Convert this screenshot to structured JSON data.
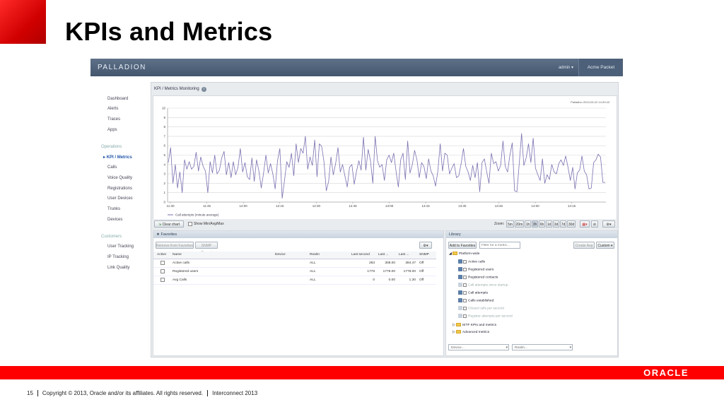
{
  "slide": {
    "title": "KPIs and Metrics",
    "page_number": "15",
    "copyright": "Copyright © 2013, Oracle and/or its affiliates. All rights reserved.",
    "event": "Interconnect 2013",
    "logo": "ORACLE",
    "accent_color": "#ff0000"
  },
  "app": {
    "brand": "PALLADION",
    "user_menu": "admin ▾",
    "top_right_tab": "Acme Packet",
    "topbar_color": "#4d6079"
  },
  "sidebar": {
    "items": [
      "Dashboard",
      "Alerts",
      "Traces",
      "Apps"
    ],
    "operations_header": "Operations",
    "operations": [
      "KPI / Metrics",
      "Calls",
      "Voice Quality",
      "Registrations",
      "User Devices",
      "Trunks",
      "Devices"
    ],
    "customers_header": "Customers",
    "customers": [
      "User Tracking",
      "IP Tracking",
      "Link Quality"
    ]
  },
  "panel": {
    "title": "KPI / Metrics Monitoring",
    "info_icon": "i",
    "timestamp": "Palladion 2013-03-22 14:20:43"
  },
  "chart_data": {
    "type": "line",
    "title": "",
    "xlabel": "",
    "ylabel": "",
    "ylim": [
      0,
      10
    ],
    "yticks": [
      "0",
      "1",
      "2",
      "3",
      "4",
      "5",
      "6",
      "7",
      "8",
      "9",
      "10"
    ],
    "xticks": [
      "11:30",
      "11:45",
      "12:00",
      "12:15",
      "12:30",
      "12:45",
      "13:00",
      "13:15",
      "13:30",
      "13:45",
      "14:00",
      "14:15"
    ],
    "grid": true,
    "legend_position": "bottom-left",
    "series": [
      {
        "name": "Call attempts (minute average)",
        "color": "#7b6fb0",
        "values": [
          4.2,
          5.8,
          2.0,
          4.0,
          1.5,
          3.2,
          1.0,
          4.5,
          3.5,
          4.3,
          3.5,
          3.8,
          5.3,
          3.3,
          4.8,
          3.8,
          3.3,
          1.0,
          4.3,
          3.1,
          5.0,
          3.0,
          3.4,
          4.7,
          5.4,
          2.9,
          4.2,
          2.6,
          4.3,
          2.9,
          3.7,
          5.7,
          3.2,
          4.2,
          2.7,
          2.4,
          4.7,
          2.2,
          4.5,
          3.3,
          1.5,
          3.1,
          5.0,
          3.1,
          4.1,
          3.0,
          1.4,
          4.4,
          5.7,
          0.4,
          2.3,
          4.3,
          3.7,
          5.2,
          2.8,
          6.2,
          4.2,
          5.7,
          5.2,
          7.0,
          3.5,
          4.8,
          3.9,
          6.6,
          2.7,
          6.2,
          5.9,
          4.3,
          1.2,
          2.2,
          4.8,
          2.9,
          4.1,
          5.8,
          3.2,
          4.0,
          2.8,
          1.6,
          3.7,
          4.0,
          1.9,
          3.3,
          4.4,
          3.4,
          6.9,
          3.4,
          5.6,
          4.4,
          2.0,
          7.0,
          4.4,
          3.7,
          4.0,
          2.3,
          4.5,
          5.0,
          4.2,
          5.2,
          3.3,
          1.6,
          4.5,
          5.2,
          2.4,
          6.5,
          3.1,
          4.0,
          5.5,
          4.5,
          2.6,
          4.2,
          3.8,
          2.5,
          4.6,
          3.3,
          2.8,
          1.7,
          3.3,
          6.2,
          3.3,
          5.2,
          5.0,
          3.0,
          3.6,
          4.1,
          2.6,
          2.8,
          4.1,
          5.7,
          3.8,
          3.2,
          2.3,
          3.9,
          2.6,
          4.2,
          1.1,
          4.2,
          4.6,
          3.2,
          2.0,
          5.2,
          4.1,
          4.3,
          3.3,
          3.9,
          6.5,
          3.8,
          3.2,
          5.0,
          6.3,
          1.2,
          1.1,
          4.1,
          7.3,
          3.9,
          4.7,
          6.2,
          4.2,
          6.8,
          3.6,
          2.9,
          2.3,
          4.6,
          2.0,
          2.9,
          2.4,
          4.0,
          3.2,
          3.0,
          4.1,
          4.5,
          3.9,
          4.9,
          3.7,
          2.3,
          3.7,
          1.4,
          3.1,
          3.4,
          4.9,
          3.3,
          2.9,
          1.4,
          1.5,
          4.2,
          4.5,
          5.1,
          4.8,
          2.1,
          2.1
        ]
      }
    ]
  },
  "toolbar": {
    "clear_chart": "Clear chart",
    "show_minavgmax": "Show Min/Avg/Max",
    "zoom_label": "Zoom:",
    "zoom_options": [
      "5m",
      "20m",
      "1h",
      "3h",
      "6h",
      "1d",
      "3d",
      "7d",
      "30d"
    ]
  },
  "favorites": {
    "title": "★ Favorites",
    "remove_button": "Remove from Favorites",
    "snmp_export": "SNMP Export",
    "columns": [
      "Active",
      "Name",
      "Device",
      "Realm",
      "Last second",
      "Last ...",
      "Last ...",
      "SNMP"
    ],
    "rows": [
      {
        "name": "Active calls",
        "device": "",
        "realm": "ALL",
        "last_second": "283",
        "last_a": "308.00",
        "last_b": "384.47",
        "snmp": "Off"
      },
      {
        "name": "Registered users",
        "device": "",
        "realm": "ALL",
        "last_second": "1778",
        "last_a": "1778.00",
        "last_b": "1778.00",
        "snmp": "Off"
      },
      {
        "name": "Avg Calls",
        "device": "",
        "realm": "ALL",
        "last_second": "0",
        "last_a": "0.00",
        "last_b": "1.30",
        "snmp": "Off"
      }
    ]
  },
  "library": {
    "title": "Library",
    "add_button": "Add to Favorites",
    "filter_placeholder": "Filter for a metric...",
    "create_avg": "Create Avg",
    "custom": "Custom ▾",
    "root": "Platform-wide",
    "items": [
      {
        "label": "Active calls",
        "enabled": true
      },
      {
        "label": "Registered users",
        "enabled": true
      },
      {
        "label": "Registered contacts",
        "enabled": true
      },
      {
        "label": "Call attempts since startup",
        "enabled": false
      },
      {
        "label": "Call attempts",
        "enabled": true
      },
      {
        "label": "Calls established",
        "enabled": true
      },
      {
        "label": "Closed calls per second",
        "enabled": false
      },
      {
        "label": "Register attempts per second",
        "enabled": false
      }
    ],
    "folders": [
      "IETF KPIs and metrics",
      "Advanced metrics"
    ],
    "device_select": "Device...",
    "realm_select": "Realm..."
  }
}
